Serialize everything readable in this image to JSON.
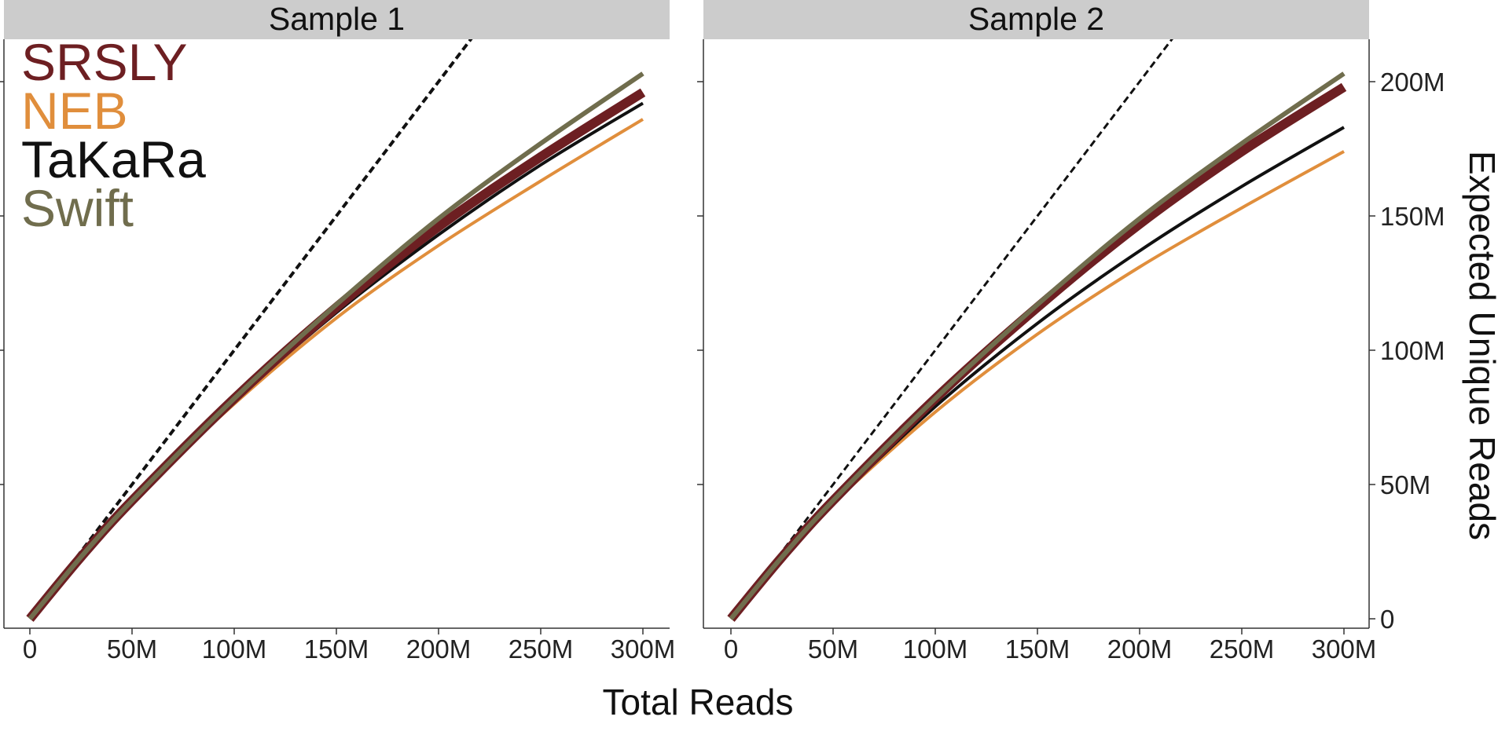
{
  "chart_data": {
    "type": "line",
    "xlabel": "Total Reads",
    "ylabel": "Expected Unique Reads",
    "xlim": [
      0,
      310
    ],
    "ylim": [
      -5,
      220
    ],
    "x_ticks": [
      0,
      50,
      100,
      150,
      200,
      250,
      300
    ],
    "x_tick_labels": [
      "0",
      "50M",
      "100M",
      "150M",
      "200M",
      "250M",
      "300M"
    ],
    "y_ticks": [
      0,
      50,
      100,
      150,
      200
    ],
    "y_tick_labels": [
      "0",
      "50M",
      "100M",
      "150M",
      "200M"
    ],
    "legend": {
      "position": "top-left",
      "entries": [
        {
          "name": "SRSLY",
          "color": "#6d1f22"
        },
        {
          "name": "NEB",
          "color": "#e08e3c"
        },
        {
          "name": "TaKaRa",
          "color": "#111111"
        },
        {
          "name": "Swift",
          "color": "#706d4d"
        }
      ]
    },
    "reference_line": {
      "style": "dashed",
      "color": "#111111",
      "x": [
        0,
        220
      ],
      "y": [
        0,
        220
      ]
    },
    "panels": [
      {
        "title": "Sample 1",
        "series": [
          {
            "name": "SRSLY",
            "color": "#6d1f22",
            "width": 12,
            "x": [
              0,
              25,
              50,
              100,
              150,
              200,
              250,
              300
            ],
            "y": [
              0,
              23,
              44,
              82,
              116,
              146,
              172,
              196
            ]
          },
          {
            "name": "NEB",
            "color": "#e08e3c",
            "width": 4,
            "x": [
              0,
              25,
              50,
              100,
              150,
              200,
              250,
              300
            ],
            "y": [
              0,
              23,
              44,
              80,
              112,
              139,
              163,
              186
            ]
          },
          {
            "name": "TaKaRa",
            "color": "#111111",
            "width": 4,
            "x": [
              0,
              25,
              50,
              100,
              150,
              200,
              250,
              300
            ],
            "y": [
              0,
              23,
              44,
              81,
              114,
              143,
              169,
              192
            ]
          },
          {
            "name": "Swift",
            "color": "#706d4d",
            "width": 6,
            "x": [
              0,
              25,
              50,
              100,
              150,
              200,
              250,
              300
            ],
            "y": [
              0,
              23,
              44,
              82,
              117,
              149,
              177,
              203
            ]
          }
        ]
      },
      {
        "title": "Sample 2",
        "series": [
          {
            "name": "SRSLY",
            "color": "#6d1f22",
            "width": 12,
            "x": [
              0,
              25,
              50,
              100,
              150,
              200,
              250,
              300
            ],
            "y": [
              0,
              23,
              44,
              82,
              116,
              147,
              174,
              198
            ]
          },
          {
            "name": "NEB",
            "color": "#e08e3c",
            "width": 4,
            "x": [
              0,
              25,
              50,
              100,
              150,
              200,
              250,
              300
            ],
            "y": [
              0,
              23,
              43,
              77,
              106,
              131,
              153,
              174
            ]
          },
          {
            "name": "TaKaRa",
            "color": "#111111",
            "width": 4,
            "x": [
              0,
              25,
              50,
              100,
              150,
              200,
              250,
              300
            ],
            "y": [
              0,
              23,
              43,
              79,
              110,
              137,
              161,
              183
            ]
          },
          {
            "name": "Swift",
            "color": "#706d4d",
            "width": 6,
            "x": [
              0,
              25,
              50,
              100,
              150,
              200,
              250,
              300
            ],
            "y": [
              0,
              23,
              44,
              82,
              117,
              149,
              177,
              203
            ]
          }
        ]
      }
    ]
  }
}
